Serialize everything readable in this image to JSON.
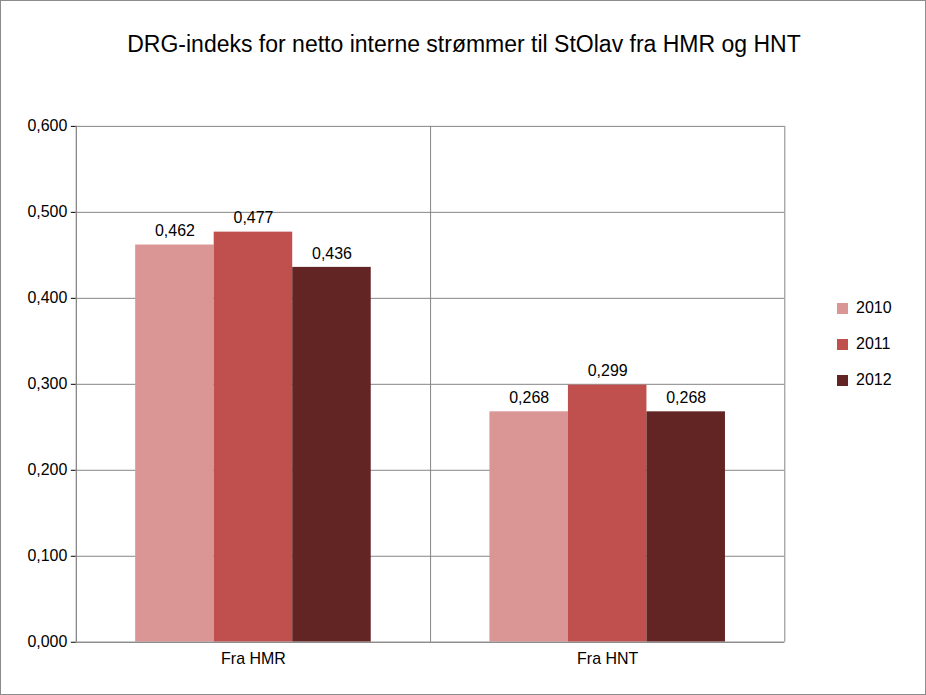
{
  "chart_data": {
    "type": "bar",
    "title": "DRG-indeks for netto interne strømmer til StOlav fra HMR og HNT",
    "categories": [
      "Fra HMR",
      "Fra HNT"
    ],
    "series": [
      {
        "name": "2010",
        "color": "#d99694",
        "values": [
          0.462,
          0.268
        ],
        "value_labels": [
          "0,462",
          "0,268"
        ]
      },
      {
        "name": "2011",
        "color": "#c0504d",
        "values": [
          0.477,
          0.299
        ],
        "value_labels": [
          "0,477",
          "0,299"
        ]
      },
      {
        "name": "2012",
        "color": "#632523",
        "values": [
          0.436,
          0.268
        ],
        "value_labels": [
          "0,436",
          "0,268"
        ]
      }
    ],
    "ylim": [
      0,
      0.6
    ],
    "yticks": [
      {
        "value": 0,
        "label": "0,000"
      },
      {
        "value": 0.1,
        "label": "0,100"
      },
      {
        "value": 0.2,
        "label": "0,200"
      },
      {
        "value": 0.3,
        "label": "0,300"
      },
      {
        "value": 0.4,
        "label": "0,400"
      },
      {
        "value": 0.5,
        "label": "0,500"
      },
      {
        "value": 0.6,
        "label": "0,600"
      }
    ],
    "grid": true,
    "legend": "right",
    "data_labels": true
  }
}
